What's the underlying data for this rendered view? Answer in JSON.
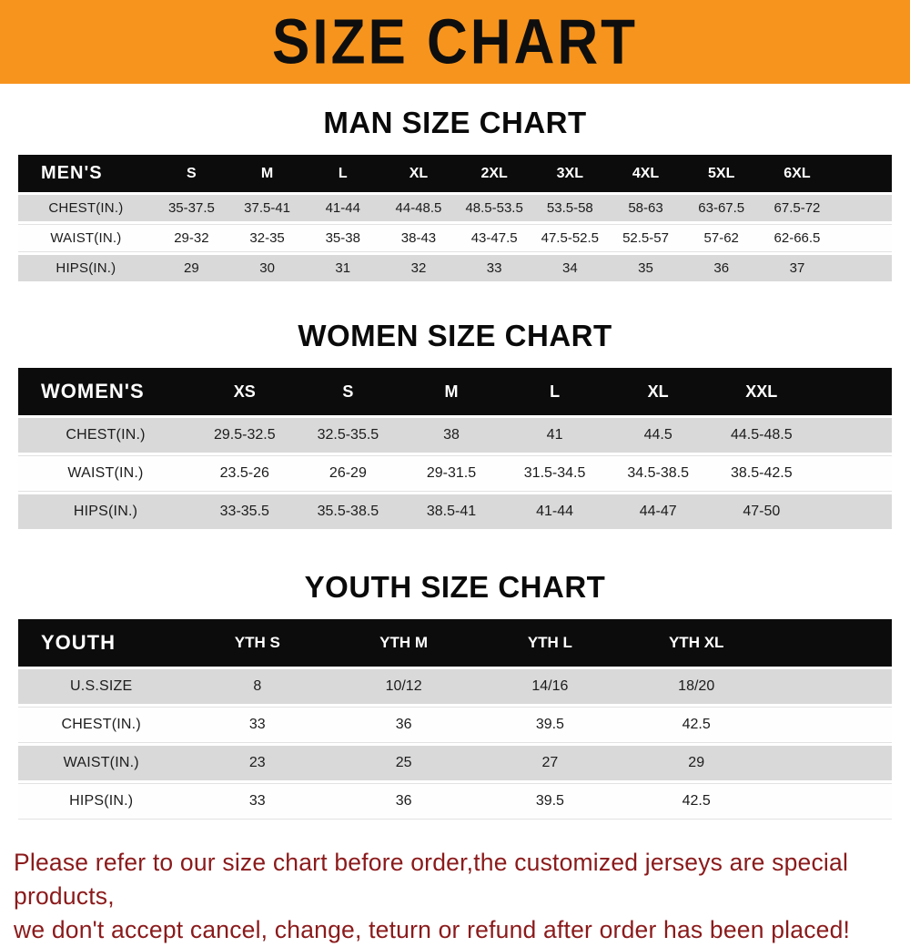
{
  "banner": {
    "title": "SIZE CHART",
    "bg_color": "#F7941D",
    "text_color": "#0e0e0e"
  },
  "sections": [
    {
      "id": "men",
      "title": "MAN SIZE CHART",
      "table": {
        "corner_label": "MEN'S",
        "columns": [
          "S",
          "M",
          "L",
          "XL",
          "2XL",
          "3XL",
          "4XL",
          "5XL",
          "6XL"
        ],
        "rows": [
          {
            "label": "CHEST(IN.)",
            "values": [
              "35-37.5",
              "37.5-41",
              "41-44",
              "44-48.5",
              "48.5-53.5",
              "53.5-58",
              "58-63",
              "63-67.5",
              "67.5-72"
            ]
          },
          {
            "label": "WAIST(IN.)",
            "values": [
              "29-32",
              "32-35",
              "35-38",
              "38-43",
              "43-47.5",
              "47.5-52.5",
              "52.5-57",
              "57-62",
              "62-66.5"
            ]
          },
          {
            "label": "HIPS(IN.)",
            "values": [
              "29",
              "30",
              "31",
              "32",
              "33",
              "34",
              "35",
              "36",
              "37"
            ]
          }
        ]
      }
    },
    {
      "id": "women",
      "title": "WOMEN SIZE CHART",
      "table": {
        "corner_label": "WOMEN'S",
        "columns": [
          "XS",
          "S",
          "M",
          "L",
          "XL",
          "XXL"
        ],
        "rows": [
          {
            "label": "CHEST(IN.)",
            "values": [
              "29.5-32.5",
              "32.5-35.5",
              "38",
              "41",
              "44.5",
              "44.5-48.5"
            ]
          },
          {
            "label": "WAIST(IN.)",
            "values": [
              "23.5-26",
              "26-29",
              "29-31.5",
              "31.5-34.5",
              "34.5-38.5",
              "38.5-42.5"
            ]
          },
          {
            "label": "HIPS(IN.)",
            "values": [
              "33-35.5",
              "35.5-38.5",
              "38.5-41",
              "41-44",
              "44-47",
              "47-50"
            ]
          }
        ]
      }
    },
    {
      "id": "youth",
      "title": "YOUTH SIZE CHART",
      "table": {
        "corner_label": "YOUTH",
        "columns": [
          "YTH S",
          "YTH M",
          "YTH L",
          "YTH XL"
        ],
        "rows": [
          {
            "label": "U.S.SIZE",
            "values": [
              "8",
              "10/12",
              "14/16",
              "18/20"
            ]
          },
          {
            "label": "CHEST(IN.)",
            "values": [
              "33",
              "36",
              "39.5",
              "42.5"
            ]
          },
          {
            "label": "WAIST(IN.)",
            "values": [
              "23",
              "25",
              "27",
              "29"
            ]
          },
          {
            "label": "HIPS(IN.)",
            "values": [
              "33",
              "36",
              "39.5",
              "42.5"
            ]
          }
        ]
      }
    }
  ],
  "footer": {
    "line1": "Please refer to our size chart before order,the customized jerseys are special products,",
    "line2": "we don't accept cancel, change, teturn or refund after order has been placed!",
    "text_color": "#8B1A1B"
  }
}
